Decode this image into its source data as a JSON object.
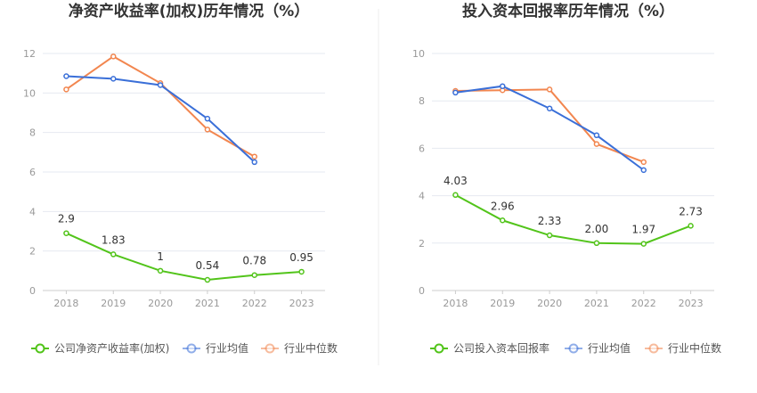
{
  "chart_data": [
    {
      "type": "line",
      "title": "净资产收益率(加权)历年情况（%）",
      "categories": [
        "2018",
        "2019",
        "2020",
        "2021",
        "2022",
        "2023"
      ],
      "ylim": [
        0,
        12
      ],
      "yticks": [
        0,
        2,
        4,
        6,
        8,
        10,
        12
      ],
      "grid": true,
      "legend_position": "bottom",
      "series": [
        {
          "name": "公司净资产收益率(加权)",
          "color": "#52c41a",
          "values": [
            2.9,
            1.83,
            1,
            0.54,
            0.78,
            0.95
          ],
          "labels": [
            "2.9",
            "1.83",
            "1",
            "0.54",
            "0.78",
            "0.95"
          ]
        },
        {
          "name": "行业均值",
          "color": "#3a6fd8",
          "values": [
            10.85,
            10.72,
            10.4,
            8.7,
            6.5,
            null
          ]
        },
        {
          "name": "行业中位数",
          "color": "#f2864f",
          "values": [
            10.18,
            11.85,
            10.5,
            8.15,
            6.78,
            null
          ]
        }
      ]
    },
    {
      "type": "line",
      "title": "投入资本回报率历年情况（%）",
      "categories": [
        "2018",
        "2019",
        "2020",
        "2021",
        "2022",
        "2023"
      ],
      "ylim": [
        0,
        10
      ],
      "yticks": [
        0,
        2,
        4,
        6,
        8,
        10
      ],
      "grid": true,
      "legend_position": "bottom",
      "series": [
        {
          "name": "公司投入资本回报率",
          "color": "#52c41a",
          "values": [
            4.03,
            2.96,
            2.33,
            2.0,
            1.97,
            2.73
          ],
          "labels": [
            "4.03",
            "2.96",
            "2.33",
            "2.00",
            "1.97",
            "2.73"
          ]
        },
        {
          "name": "行业均值",
          "color": "#3a6fd8",
          "values": [
            8.35,
            8.62,
            7.68,
            6.55,
            5.08,
            null
          ]
        },
        {
          "name": "行业中位数",
          "color": "#f2864f",
          "values": [
            8.42,
            8.45,
            8.48,
            6.18,
            5.42,
            null
          ]
        }
      ]
    }
  ]
}
